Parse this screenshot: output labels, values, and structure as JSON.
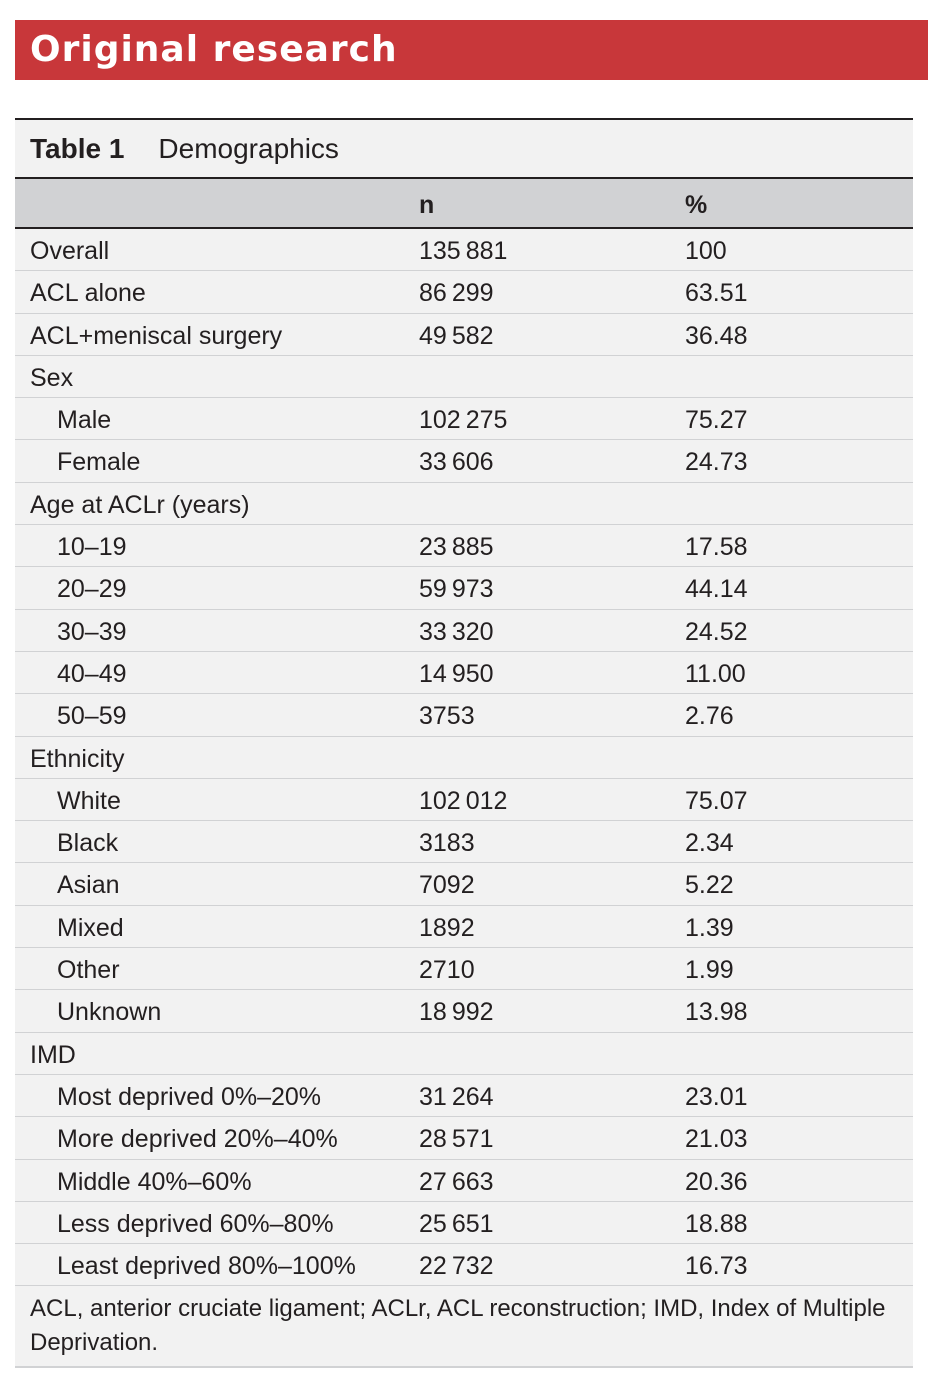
{
  "banner": {
    "title": "Original research",
    "color": "#c8373a"
  },
  "table": {
    "label": "Table 1",
    "title": "Demographics",
    "columns": [
      "",
      "n",
      "%"
    ],
    "rows": [
      {
        "label": "Overall",
        "n": "135 881",
        "pct": "100",
        "indent": false
      },
      {
        "label": "ACL alone",
        "n": "86 299",
        "pct": "63.51",
        "indent": false
      },
      {
        "label": "ACL+meniscal surgery",
        "n": "49 582",
        "pct": "36.48",
        "indent": false
      },
      {
        "label": "Sex",
        "n": "",
        "pct": "",
        "indent": false
      },
      {
        "label": "Male",
        "n": "102 275",
        "pct": "75.27",
        "indent": true
      },
      {
        "label": "Female",
        "n": "33 606",
        "pct": "24.73",
        "indent": true
      },
      {
        "label": "Age at ACLr (years)",
        "n": "",
        "pct": "",
        "indent": false
      },
      {
        "label": "10–19",
        "n": "23 885",
        "pct": "17.58",
        "indent": true
      },
      {
        "label": "20–29",
        "n": "59 973",
        "pct": "44.14",
        "indent": true
      },
      {
        "label": "30–39",
        "n": "33 320",
        "pct": "24.52",
        "indent": true
      },
      {
        "label": "40–49",
        "n": "14 950",
        "pct": "11.00",
        "indent": true
      },
      {
        "label": "50–59",
        "n": "3753",
        "pct": "2.76",
        "indent": true
      },
      {
        "label": "Ethnicity",
        "n": "",
        "pct": "",
        "indent": false
      },
      {
        "label": "White",
        "n": "102 012",
        "pct": "75.07",
        "indent": true
      },
      {
        "label": "Black",
        "n": "3183",
        "pct": "2.34",
        "indent": true
      },
      {
        "label": "Asian",
        "n": "7092",
        "pct": "5.22",
        "indent": true
      },
      {
        "label": "Mixed",
        "n": "1892",
        "pct": "1.39",
        "indent": true
      },
      {
        "label": "Other",
        "n": "2710",
        "pct": "1.99",
        "indent": true
      },
      {
        "label": "Unknown",
        "n": "18 992",
        "pct": "13.98",
        "indent": true
      },
      {
        "label": "IMD",
        "n": "",
        "pct": "",
        "indent": false
      },
      {
        "label": "Most deprived 0%–20%",
        "n": "31 264",
        "pct": "23.01",
        "indent": true
      },
      {
        "label": "More deprived 20%–40%",
        "n": "28 571",
        "pct": "21.03",
        "indent": true
      },
      {
        "label": "Middle 40%–60%",
        "n": "27 663",
        "pct": "20.36",
        "indent": true
      },
      {
        "label": "Less deprived 60%–80%",
        "n": "25 651",
        "pct": "18.88",
        "indent": true
      },
      {
        "label": "Least deprived 80%–100%",
        "n": "22 732",
        "pct": "16.73",
        "indent": true
      }
    ],
    "footnote": "ACL, anterior cruciate ligament; ACLr, ACL reconstruction; IMD, Index of Multiple Deprivation."
  }
}
